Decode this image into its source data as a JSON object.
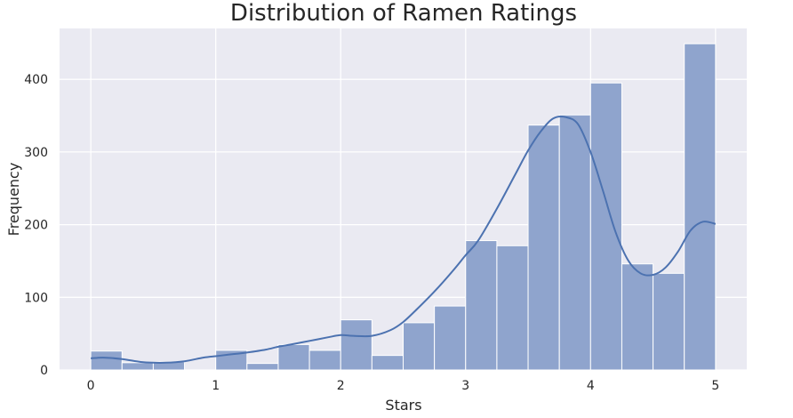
{
  "chart_data": {
    "type": "bar",
    "title": "Distribution of Ramen Ratings",
    "xlabel": "Stars",
    "ylabel": "Frequency",
    "xlim": [
      -0.25,
      5.25
    ],
    "ylim": [
      0,
      470
    ],
    "x_ticks": [
      "0",
      "1",
      "2",
      "3",
      "4",
      "5"
    ],
    "y_ticks": [
      "0",
      "100",
      "200",
      "300",
      "400"
    ],
    "grid": true,
    "bin_edges": [
      0,
      0.25,
      0.5,
      0.75,
      1.0,
      1.25,
      1.5,
      1.75,
      2.0,
      2.25,
      2.5,
      2.75,
      3.0,
      3.25,
      3.5,
      3.75,
      4.0,
      4.25,
      4.5,
      4.75,
      5.0
    ],
    "values": [
      26,
      10,
      11,
      0,
      27,
      9,
      35,
      27,
      69,
      20,
      65,
      88,
      178,
      171,
      337,
      351,
      395,
      146,
      133,
      449
    ],
    "kde": {
      "x": [
        0,
        0.1,
        0.25,
        0.4,
        0.5,
        0.6,
        0.75,
        0.9,
        1.0,
        1.1,
        1.25,
        1.4,
        1.5,
        1.6,
        1.75,
        1.9,
        2.0,
        2.1,
        2.25,
        2.4,
        2.5,
        2.6,
        2.75,
        2.9,
        3.0,
        3.1,
        3.25,
        3.4,
        3.5,
        3.6,
        3.7,
        3.8,
        3.9,
        4.0,
        4.1,
        4.2,
        4.3,
        4.4,
        4.5,
        4.6,
        4.7,
        4.8,
        4.9,
        5.0
      ],
      "y": [
        16,
        17,
        15,
        11,
        10,
        10,
        12,
        17,
        19,
        21,
        24,
        28,
        32,
        35,
        40,
        45,
        48,
        47,
        47,
        55,
        66,
        82,
        108,
        137,
        158,
        178,
        222,
        270,
        302,
        328,
        346,
        348,
        338,
        300,
        246,
        190,
        151,
        133,
        131,
        141,
        163,
        192,
        204,
        201
      ]
    },
    "colors": {
      "bar": "#8fa4cd",
      "bar_edge": "#ffffff",
      "kde": "#4c72b0",
      "background": "#eaeaf2",
      "grid": "#ffffff"
    }
  }
}
